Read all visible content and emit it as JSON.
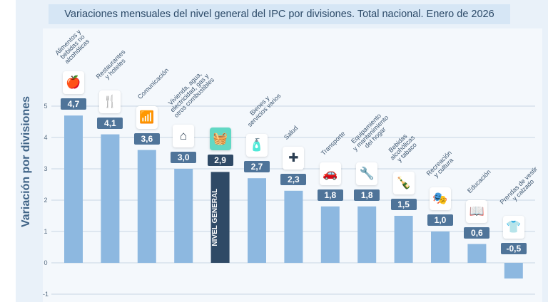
{
  "chart_data": {
    "type": "bar",
    "title": "Variaciones mensuales del nivel general del IPC por divisiones. Total nacional. Enero de 2026",
    "ylabel": "Variación por divisiones",
    "ylim": [
      -1,
      5.3
    ],
    "yticks": [
      -1,
      0,
      1,
      2,
      3,
      4,
      5
    ],
    "grid": true,
    "categories": [
      "Alimentos y\nbebidas no\nalcohólicas",
      "Restaurantes\ny hoteles",
      "Comunicación",
      "Vivienda, agua,\nelectricidad, gas y\notros combustibles",
      "NIVEL GENERAL",
      "Bienes y\nservicios varios",
      "Salud",
      "Transporte",
      "Equipamiento\ny mantenimiento\ndel hogar",
      "Bebidas\nalcohólicas\ny tabaco",
      "Recreación\ny cultura",
      "Educación",
      "Prendas de vestir\ny calzado"
    ],
    "values": [
      4.7,
      4.1,
      3.6,
      3.0,
      2.9,
      2.7,
      2.3,
      1.8,
      1.8,
      1.5,
      1.0,
      0.6,
      -0.5
    ],
    "value_labels": [
      "4,7",
      "4,1",
      "3,6",
      "3,0",
      "2,9",
      "2,7",
      "2,3",
      "1,8",
      "1,8",
      "1,5",
      "1,0",
      "0,6",
      "-0,5"
    ],
    "icons": [
      "food-icon",
      "restaurant-icon",
      "wifi-icon",
      "house-energy-icon",
      "basket-icon",
      "cosmetics-icon",
      "health-cross-icon",
      "car-icon",
      "tools-icon",
      "bottle-icon",
      "theater-icon",
      "book-icon",
      "shirt-icon"
    ],
    "colors": {
      "bar": "#8db8e0",
      "highlight_bar": "#2f4a66",
      "label": "#4f7499",
      "highlight_label": "#2f4a66",
      "highlight_icon": "#62d8c4"
    },
    "highlight_label": "NIVEL GENERAL"
  }
}
